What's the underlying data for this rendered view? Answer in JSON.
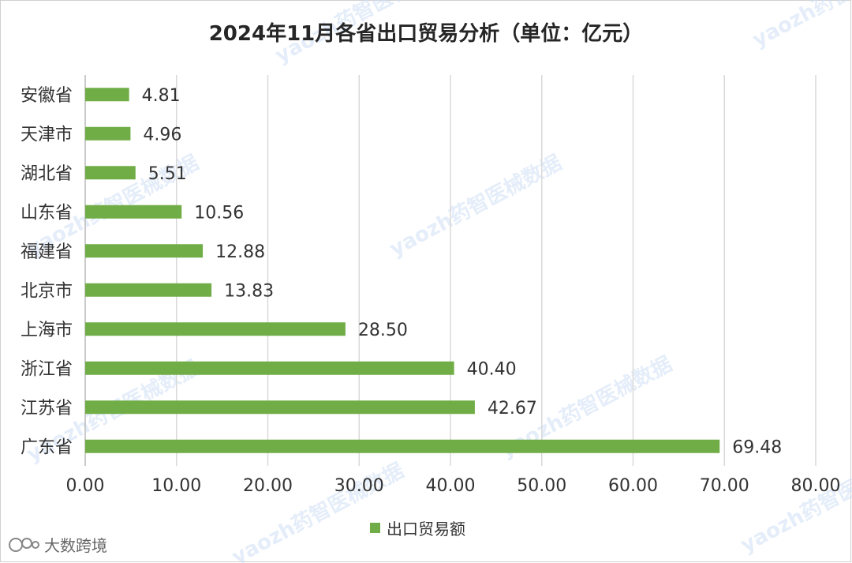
{
  "chart_data": {
    "type": "bar",
    "orientation": "horizontal",
    "title": "2024年11月各省出口贸易分析（单位：亿元）",
    "categories": [
      "安徽省",
      "天津市",
      "湖北省",
      "山东省",
      "福建省",
      "北京市",
      "上海市",
      "浙江省",
      "江苏省",
      "广东省"
    ],
    "series": [
      {
        "name": "出口贸易额",
        "values": [
          4.81,
          4.96,
          5.51,
          10.56,
          12.88,
          13.83,
          28.5,
          40.4,
          42.67,
          69.48
        ]
      }
    ],
    "data_labels": [
      "4.81",
      "4.96",
      "5.51",
      "10.56",
      "12.88",
      "13.83",
      "28.50",
      "40.40",
      "42.67",
      "69.48"
    ],
    "xlim": [
      0,
      80
    ],
    "x_ticks": [
      0,
      10,
      20,
      30,
      40,
      50,
      60,
      70,
      80
    ],
    "x_tick_labels": [
      "0.00",
      "10.00",
      "20.00",
      "30.00",
      "40.00",
      "50.00",
      "60.00",
      "70.00",
      "80.00"
    ],
    "grid": "vertical",
    "legend_position": "bottom-center",
    "bar_color": "#70ad47"
  },
  "watermark": {
    "brand": "yaozh",
    "text": "药智医械数据",
    "footer": "大数跨境"
  }
}
